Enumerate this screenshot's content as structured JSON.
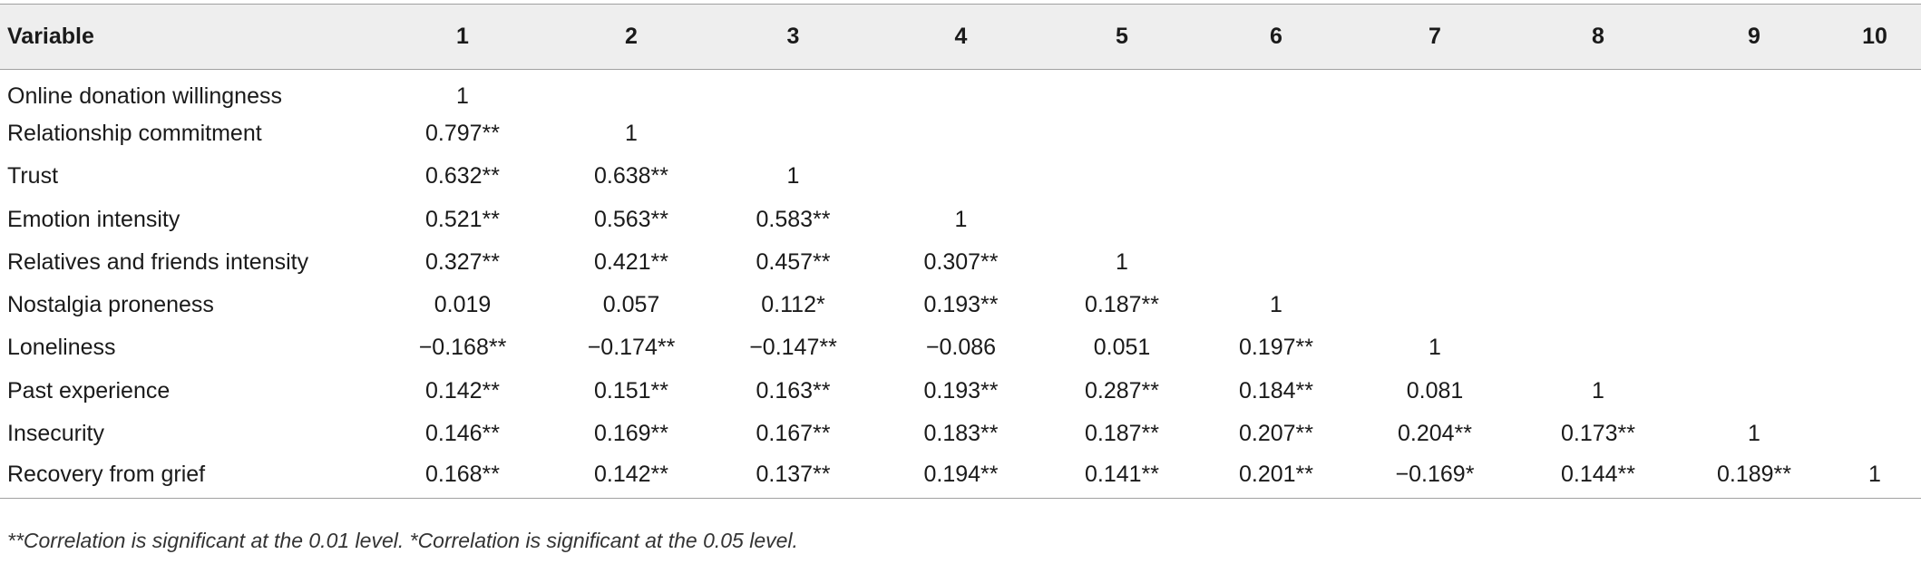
{
  "table": {
    "header": {
      "variable": "Variable",
      "columns": [
        "1",
        "2",
        "3",
        "4",
        "5",
        "6",
        "7",
        "8",
        "9",
        "10"
      ]
    },
    "rows": [
      {
        "name": "Online donation willingness",
        "cells": [
          "1",
          "",
          "",
          "",
          "",
          "",
          "",
          "",
          "",
          ""
        ]
      },
      {
        "name": "Relationship commitment",
        "cells": [
          "0.797**",
          "1",
          "",
          "",
          "",
          "",
          "",
          "",
          "",
          ""
        ]
      },
      {
        "name": "Trust",
        "cells": [
          "0.632**",
          "0.638**",
          "1",
          "",
          "",
          "",
          "",
          "",
          "",
          ""
        ]
      },
      {
        "name": "Emotion intensity",
        "cells": [
          "0.521**",
          "0.563**",
          "0.583**",
          "1",
          "",
          "",
          "",
          "",
          "",
          ""
        ]
      },
      {
        "name": "Relatives and friends intensity",
        "cells": [
          "0.327**",
          "0.421**",
          "0.457**",
          "0.307**",
          "1",
          "",
          "",
          "",
          "",
          ""
        ]
      },
      {
        "name": "Nostalgia proneness",
        "cells": [
          "0.019",
          "0.057",
          "0.112*",
          "0.193**",
          "0.187**",
          "1",
          "",
          "",
          "",
          ""
        ]
      },
      {
        "name": "Loneliness",
        "cells": [
          "−0.168**",
          "−0.174**",
          "−0.147**",
          "−0.086",
          "0.051",
          "0.197**",
          "1",
          "",
          "",
          ""
        ]
      },
      {
        "name": "Past experience",
        "cells": [
          "0.142**",
          "0.151**",
          "0.163**",
          "0.193**",
          "0.287**",
          "0.184**",
          "0.081",
          "1",
          "",
          ""
        ]
      },
      {
        "name": "Insecurity",
        "cells": [
          "0.146**",
          "0.169**",
          "0.167**",
          "0.183**",
          "0.187**",
          "0.207**",
          "0.204**",
          "0.173**",
          "1",
          ""
        ]
      },
      {
        "name": "Recovery from grief",
        "cells": [
          "0.168**",
          "0.142**",
          "0.137**",
          "0.194**",
          "0.141**",
          "0.201**",
          "−0.169*",
          "0.144**",
          "0.189**",
          "1"
        ]
      }
    ]
  },
  "footnote": "**Correlation is significant at the 0.01 level. *Correlation is significant at the 0.05 level."
}
